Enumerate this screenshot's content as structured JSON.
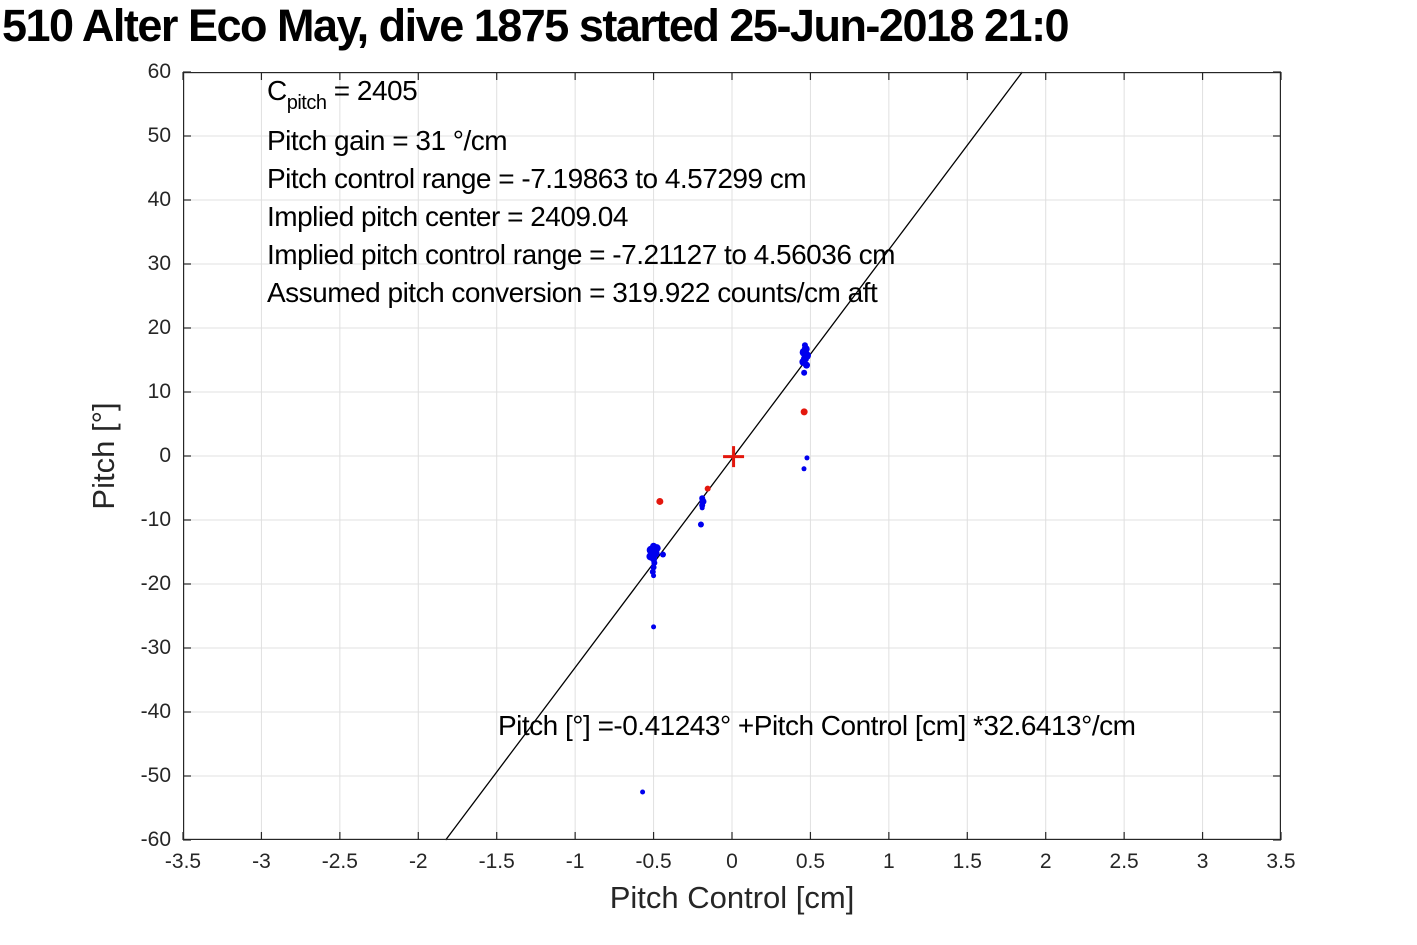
{
  "title": "510 Alter Eco May, dive 1875 started 25-Jun-2018 21:0",
  "colors": {
    "blue_marker": "#0000ee",
    "red_marker": "#e3170d",
    "fit_line": "#000000",
    "grid": "#e0e0e0",
    "axis": "#262626",
    "tick_text": "#262626",
    "annotation_text": "#000000"
  },
  "chart_data": {
    "type": "scatter",
    "title": "510 Alter Eco May, dive 1875 started 25-Jun-2018 21:0",
    "xlabel": "Pitch Control [cm]",
    "ylabel": "Pitch [°]",
    "xlim": [
      -3.5,
      3.5
    ],
    "ylim": [
      -60,
      60
    ],
    "xticks": [
      -3.5,
      -3,
      -2.5,
      -2,
      -1.5,
      -1,
      -0.5,
      0,
      0.5,
      1,
      1.5,
      2,
      2.5,
      3,
      3.5
    ],
    "yticks": [
      -60,
      -50,
      -40,
      -30,
      -20,
      -10,
      0,
      10,
      20,
      30,
      40,
      50,
      60
    ],
    "grid": true,
    "legend": "none",
    "series": [
      {
        "name": "pitch-samples-blue",
        "marker": "dot",
        "color": "#0000ee",
        "points": [
          [
            -0.57,
            -52.5,
            2.5
          ],
          [
            -0.5,
            -26.7,
            2.5
          ],
          [
            -0.5,
            -18.7,
            2.5
          ],
          [
            -0.505,
            -18.1,
            3
          ],
          [
            -0.5,
            -17.4,
            3
          ],
          [
            -0.495,
            -16.7,
            3
          ],
          [
            -0.5,
            -16.1,
            3.5
          ],
          [
            -0.52,
            -15.7,
            4
          ],
          [
            -0.49,
            -15.2,
            4.5
          ],
          [
            -0.515,
            -14.7,
            4.5
          ],
          [
            -0.48,
            -14.4,
            4
          ],
          [
            -0.5,
            -14.1,
            3.5
          ],
          [
            -0.44,
            -15.4,
            3
          ],
          [
            -0.19,
            -6.6,
            3
          ],
          [
            -0.185,
            -7.1,
            3.5
          ],
          [
            -0.19,
            -7.7,
            3
          ],
          [
            -0.19,
            -8.1,
            2.5
          ],
          [
            -0.198,
            -10.7,
            3
          ],
          [
            0.465,
            17.3,
            3
          ],
          [
            0.47,
            16.7,
            4
          ],
          [
            0.46,
            16.2,
            4.5
          ],
          [
            0.475,
            15.7,
            4.5
          ],
          [
            0.465,
            15.2,
            4
          ],
          [
            0.455,
            14.7,
            4
          ],
          [
            0.475,
            14.2,
            3.5
          ],
          [
            0.46,
            13.0,
            3
          ],
          [
            0.478,
            -0.3,
            2.5
          ],
          [
            0.459,
            -2.0,
            2.5
          ]
        ]
      },
      {
        "name": "pitch-samples-red",
        "marker": "dot",
        "color": "#e3170d",
        "points": [
          [
            -0.46,
            -7.1,
            3.5
          ],
          [
            -0.155,
            -5.1,
            3
          ],
          [
            0.46,
            6.9,
            3.5
          ]
        ]
      },
      {
        "name": "origin-cross",
        "marker": "plus",
        "color": "#e3170d",
        "points": [
          [
            0.01,
            -0.1,
            10.5
          ]
        ]
      }
    ],
    "fit_line": {
      "intercept": -0.41243,
      "slope": 32.6413,
      "color": "#000000"
    },
    "annotations": {
      "info_lines": [
        {
          "pre": "C",
          "sub": "pitch",
          "post": " = 2405"
        },
        {
          "text": "Pitch gain = 31 °/cm"
        },
        {
          "text": "Pitch control range = -7.19863 to 4.57299 cm"
        },
        {
          "text": "Implied pitch center = 2409.04"
        },
        {
          "text": "Implied pitch control range = -7.21127 to 4.56036 cm"
        },
        {
          "text": "Assumed pitch conversion = 319.922 counts/cm aft"
        }
      ],
      "equation": "Pitch [°] =-0.41243° +Pitch Control [cm] *32.6413°/cm"
    }
  }
}
